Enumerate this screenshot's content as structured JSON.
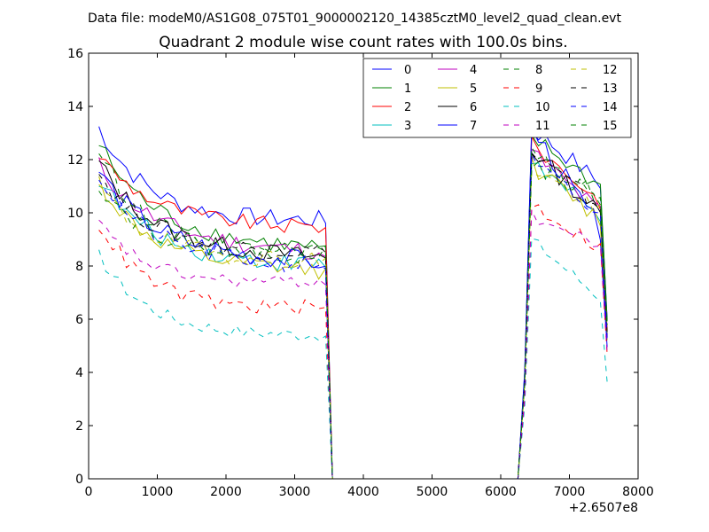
{
  "figure": {
    "suptitle": "Data file: modeM0/AS1G08_075T01_9000002120_14385cztM0_level2_quad_clean.evt"
  },
  "chart_data": {
    "type": "line",
    "title": "Quadrant 2 module wise count rates with 100.0s bins.",
    "xlabel": "",
    "ylabel": "",
    "xlim": [
      0,
      8000
    ],
    "ylim": [
      0,
      16
    ],
    "x_ticks": [
      0,
      1000,
      2000,
      3000,
      4000,
      5000,
      6000,
      7000,
      8000
    ],
    "x_tick_labels": [
      "0",
      "1000",
      "2000",
      "3000",
      "4000",
      "5000",
      "6000",
      "7000",
      "8000"
    ],
    "y_ticks": [
      0,
      2,
      4,
      6,
      8,
      10,
      12,
      14,
      16
    ],
    "y_tick_labels": [
      "0",
      "2",
      "4",
      "6",
      "8",
      "10",
      "12",
      "14",
      "16"
    ],
    "x_offset_label": "+2.6507e8",
    "grid": false,
    "legend_position": "top-right",
    "legend_columns": 4,
    "series": [
      {
        "name": "0",
        "color": "#0000ff",
        "dash": "solid",
        "start_mean": 13.2,
        "plateau": 9.6,
        "mid_end": 9.7,
        "decay": 2.3,
        "peak": 13.4,
        "end": 10.9,
        "noise": 0.35
      },
      {
        "name": "1",
        "color": "#008000",
        "dash": "solid",
        "start_mean": 12.6,
        "plateau": 9.2,
        "mid_end": 8.6,
        "decay": 2.1,
        "peak": 13.0,
        "end": 10.8,
        "noise": 0.35
      },
      {
        "name": "2",
        "color": "#ff0000",
        "dash": "solid",
        "start_mean": 12.2,
        "plateau": 9.7,
        "mid_end": 9.4,
        "decay": 2.5,
        "peak": 12.8,
        "end": 10.2,
        "noise": 0.3
      },
      {
        "name": "3",
        "color": "#00bfbf",
        "dash": "solid",
        "start_mean": 11.3,
        "plateau": 8.3,
        "mid_end": 8.0,
        "decay": 2.0,
        "peak": 12.2,
        "end": 9.5,
        "noise": 0.35
      },
      {
        "name": "4",
        "color": "#bf00bf",
        "dash": "solid",
        "start_mean": 11.8,
        "plateau": 9.0,
        "mid_end": 8.5,
        "decay": 2.2,
        "peak": 12.5,
        "end": 9.8,
        "noise": 0.35
      },
      {
        "name": "5",
        "color": "#bfbf00",
        "dash": "solid",
        "start_mean": 11.2,
        "plateau": 8.0,
        "mid_end": 7.8,
        "decay": 2.0,
        "peak": 12.0,
        "end": 9.5,
        "noise": 0.35
      },
      {
        "name": "6",
        "color": "#000000",
        "dash": "solid",
        "start_mean": 11.9,
        "plateau": 8.7,
        "mid_end": 8.3,
        "decay": 2.2,
        "peak": 12.6,
        "end": 9.7,
        "noise": 0.35
      },
      {
        "name": "7",
        "color": "#0000ff",
        "dash": "solid",
        "start_mean": 11.6,
        "plateau": 8.6,
        "mid_end": 8.1,
        "decay": 2.1,
        "peak": 13.5,
        "end": 9.0,
        "noise": 0.4
      },
      {
        "name": "8",
        "color": "#008000",
        "dash": "dashed",
        "start_mean": 12.4,
        "plateau": 8.3,
        "mid_end": 8.4,
        "decay": 2.2,
        "peak": 12.3,
        "end": 10.5,
        "noise": 0.35
      },
      {
        "name": "9",
        "color": "#ff0000",
        "dash": "dashed",
        "start_mean": 9.6,
        "plateau": 6.2,
        "mid_end": 6.4,
        "decay": 2.0,
        "peak": 10.5,
        "end": 8.5,
        "noise": 0.3
      },
      {
        "name": "10",
        "color": "#00bfbf",
        "dash": "dashed",
        "start_mean": 8.4,
        "plateau": 5.3,
        "mid_end": 5.4,
        "decay": 2.0,
        "peak": 9.2,
        "end": 6.6,
        "noise": 0.25
      },
      {
        "name": "11",
        "color": "#bf00bf",
        "dash": "dashed",
        "start_mean": 9.6,
        "plateau": 7.1,
        "mid_end": 7.4,
        "decay": 2.2,
        "peak": 10.0,
        "end": 8.6,
        "noise": 0.25
      },
      {
        "name": "12",
        "color": "#bfbf00",
        "dash": "dashed",
        "start_mean": 11.0,
        "plateau": 8.2,
        "mid_end": 8.2,
        "decay": 2.1,
        "peak": 11.9,
        "end": 9.8,
        "noise": 0.35
      },
      {
        "name": "13",
        "color": "#000000",
        "dash": "dashed",
        "start_mean": 11.5,
        "plateau": 8.6,
        "mid_end": 8.5,
        "decay": 2.1,
        "peak": 12.4,
        "end": 10.0,
        "noise": 0.35
      },
      {
        "name": "14",
        "color": "#0000ff",
        "dash": "dashed",
        "start_mean": 11.4,
        "plateau": 8.2,
        "mid_end": 8.0,
        "decay": 2.0,
        "peak": 12.1,
        "end": 9.6,
        "noise": 0.35
      },
      {
        "name": "15",
        "color": "#008000",
        "dash": "dashed",
        "start_mean": 11.1,
        "plateau": 8.3,
        "mid_end": 8.6,
        "decay": 2.0,
        "peak": 12.0,
        "end": 10.4,
        "noise": 0.35
      }
    ],
    "segments": [
      {
        "x_start": 150,
        "x_end": 3450,
        "step": 100,
        "kind": "first"
      },
      {
        "x_start": 3550,
        "x_end": 6250,
        "step": 100,
        "kind": "gap"
      },
      {
        "x_start": 6350,
        "x_end": 7550,
        "step": 100,
        "kind": "second"
      }
    ]
  }
}
